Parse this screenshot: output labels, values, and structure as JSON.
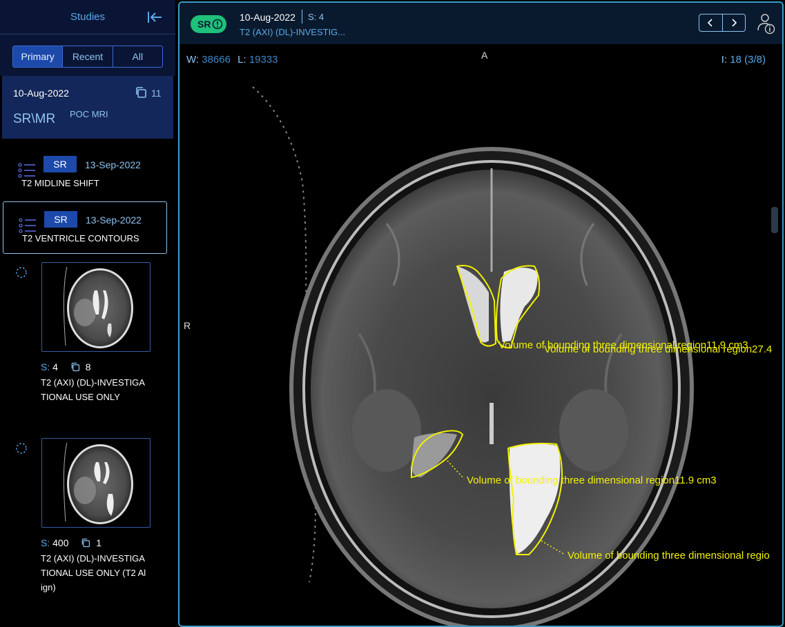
{
  "sidebar": {
    "title": "Studies",
    "tabs": [
      {
        "label": "Primary",
        "active": true
      },
      {
        "label": "Recent",
        "active": false
      },
      {
        "label": "All",
        "active": false
      }
    ],
    "study": {
      "date": "10-Aug-2022",
      "instance_count": "11",
      "modality": "SR\\MR",
      "description": "POC MRI"
    },
    "sr_items": [
      {
        "badge": "SR",
        "date": "13-Sep-2022",
        "label": "T2 MIDLINE SHIFT",
        "selected": false
      },
      {
        "badge": "SR",
        "date": "13-Sep-2022",
        "label": "T2 VENTRICLE CONTOURS",
        "selected": true
      }
    ],
    "series": [
      {
        "series_label": "S:",
        "series_number": "4",
        "count": "8",
        "title_line1": "T2 (AXI) (DL)-INVESTIGA",
        "title_line2": "TIONAL USE ONLY",
        "title_line3": ""
      },
      {
        "series_label": "S:",
        "series_number": "400",
        "count": "1",
        "title_line1": "T2 (AXI) (DL)-INVESTIGA",
        "title_line2": "TIONAL USE ONLY (T2 Al",
        "title_line3": "ign)"
      }
    ]
  },
  "viewer": {
    "pill": "SR",
    "date": "10-Aug-2022",
    "series_label": "S:",
    "series_number": "4",
    "description": "T2 (AXI) (DL)-INVESTIG...",
    "window_key": "W:",
    "window_value": "38666",
    "level_key": "L:",
    "level_value": "19333",
    "index_key": "I:",
    "index_value": "18 (3/8)",
    "orientation_top": "A",
    "orientation_left": "R",
    "annotations": [
      "Volume of bounding three dimensional region11.9 cm3",
      "Volume of bounding three dimensional region27.4",
      "Volume of bounding three dimensional region11.9 cm3",
      "Volume of bounding three dimensional regio"
    ],
    "colors": {
      "annotation": "#f2f200",
      "accent": "#3b9dc9",
      "pill": "#1ec07a"
    }
  }
}
